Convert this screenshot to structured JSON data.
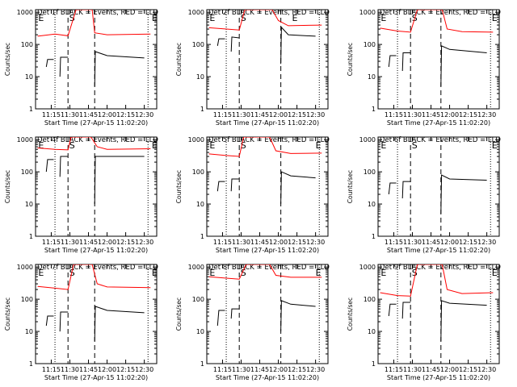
{
  "chart_data": {
    "type": "line",
    "common": {
      "title_suffix": "BLACK = Events, RED = LLD",
      "ylabel": "Counts/sec",
      "xlabel": "Start Time (27-Apr-15 11:02:20)",
      "x_ticks": [
        "11:15",
        "11:30",
        "11:45",
        "12:00",
        "12:15",
        "12:30"
      ],
      "x_tick_minutes": [
        15,
        30,
        45,
        60,
        75,
        90
      ],
      "xlim_minutes": [
        2.33,
        100
      ],
      "ylim": [
        1,
        1200
      ],
      "y_scale": "log",
      "y_ticks": [
        "1",
        "10",
        "100",
        "1000"
      ],
      "marker_labels": {
        "E": "E",
        "S": "S"
      },
      "colors": {
        "events": "#000000",
        "lld": "#ff0000"
      },
      "segment_minutes": [
        [
          11,
          17
        ],
        [
          22,
          28.5
        ],
        [
          50,
          90
        ]
      ]
    },
    "panels": [
      {
        "title": "Det 1f",
        "lld": [
          [
            4,
            180
          ],
          [
            18,
            210
          ],
          [
            28.5,
            185
          ],
          [
            35,
            1200
          ],
          [
            48,
            1200
          ],
          [
            50,
            230
          ],
          [
            60,
            200
          ],
          [
            95,
            210
          ]
        ],
        "events": [
          [
            11,
            20
          ],
          [
            12,
            34
          ],
          [
            17,
            34
          ],
          [
            22,
            10
          ],
          [
            22.5,
            40
          ],
          [
            28.5,
            40
          ],
          [
            50,
            5
          ],
          [
            50.5,
            60
          ],
          [
            60,
            45
          ],
          [
            90,
            38
          ]
        ],
        "dotted": [
          18,
          93
        ],
        "dashed": [
          28.5,
          50
        ],
        "E": [
          4.5,
          96
        ],
        "S": [
          29.5,
          96
        ]
      },
      {
        "title": "Det 2f",
        "lld": [
          [
            4,
            330
          ],
          [
            18,
            300
          ],
          [
            28.5,
            280
          ],
          [
            33,
            1200
          ],
          [
            55,
            1200
          ],
          [
            60,
            550
          ],
          [
            68,
            380
          ],
          [
            95,
            400
          ]
        ],
        "events": [
          [
            11,
            90
          ],
          [
            12,
            150
          ],
          [
            17,
            150
          ],
          [
            22,
            60
          ],
          [
            22.5,
            170
          ],
          [
            28.5,
            160
          ],
          [
            62,
            25
          ],
          [
            62.5,
            340
          ],
          [
            68,
            200
          ],
          [
            90,
            180
          ]
        ],
        "dotted": [
          18,
          93
        ],
        "dashed": [
          28.5,
          62
        ],
        "E": [
          4.5,
          71
        ],
        "S": [
          29.5,
          89
        ]
      },
      {
        "title": "Det 3f",
        "lld": [
          [
            4,
            320
          ],
          [
            18,
            260
          ],
          [
            28.5,
            240
          ],
          [
            34,
            1200
          ],
          [
            54,
            1200
          ],
          [
            58,
            300
          ],
          [
            70,
            250
          ],
          [
            95,
            240
          ]
        ],
        "events": [
          [
            11,
            20
          ],
          [
            12,
            45
          ],
          [
            17,
            45
          ],
          [
            22,
            15
          ],
          [
            22.5,
            55
          ],
          [
            28.5,
            55
          ],
          [
            53,
            5
          ],
          [
            53.5,
            90
          ],
          [
            60,
            70
          ],
          [
            90,
            55
          ]
        ],
        "dotted": [
          18,
          93
        ],
        "dashed": [
          28.5,
          53
        ],
        "E": [
          4.5,
          94
        ],
        "S": [
          29.5,
          93
        ]
      },
      {
        "title": "Det 4f",
        "lld": [
          [
            4,
            550
          ],
          [
            18,
            500
          ],
          [
            28.5,
            480
          ],
          [
            31,
            1200
          ],
          [
            47,
            1200
          ],
          [
            52,
            600
          ],
          [
            60,
            500
          ],
          [
            95,
            520
          ]
        ],
        "events": [
          [
            11,
            100
          ],
          [
            12,
            240
          ],
          [
            17,
            240
          ],
          [
            22,
            70
          ],
          [
            22.5,
            300
          ],
          [
            28.5,
            300
          ],
          [
            50,
            10
          ],
          [
            50.5,
            300
          ],
          [
            60,
            300
          ],
          [
            90,
            300
          ]
        ],
        "dotted": [
          18,
          93
        ],
        "dashed": [
          28.5,
          50
        ],
        "E": [
          4.5,
          96
        ],
        "S": [
          29.5,
          96
        ]
      },
      {
        "title": "Det 5f",
        "lld": [
          [
            4,
            360
          ],
          [
            18,
            320
          ],
          [
            28.5,
            300
          ],
          [
            32,
            1200
          ],
          [
            53,
            1200
          ],
          [
            58,
            450
          ],
          [
            70,
            370
          ],
          [
            95,
            380
          ]
        ],
        "events": [
          [
            11,
            25
          ],
          [
            12,
            50
          ],
          [
            17,
            50
          ],
          [
            22,
            25
          ],
          [
            22.5,
            60
          ],
          [
            28.5,
            60
          ],
          [
            62,
            10
          ],
          [
            62.5,
            100
          ],
          [
            70,
            75
          ],
          [
            90,
            65
          ]
        ],
        "dotted": [
          18,
          93
        ],
        "dashed": [
          28.5,
          62
        ],
        "E": [
          4.5,
          90
        ],
        "S": [
          29.5,
          89
        ]
      },
      {
        "title": "Det 6f",
        "lld": [],
        "events": [
          [
            11,
            20
          ],
          [
            12,
            45
          ],
          [
            17,
            45
          ],
          [
            22,
            15
          ],
          [
            22.5,
            50
          ],
          [
            28.5,
            50
          ],
          [
            53,
            5
          ],
          [
            53.5,
            80
          ],
          [
            60,
            60
          ],
          [
            90,
            55
          ]
        ],
        "dotted": [
          18,
          93
        ],
        "dashed": [
          28.5,
          53
        ],
        "E": [
          4.5,
          94
        ],
        "S": [
          29.5,
          93
        ]
      },
      {
        "title": "Det 7f",
        "lld": [
          [
            4,
            250
          ],
          [
            18,
            220
          ],
          [
            28.5,
            200
          ],
          [
            33,
            1200
          ],
          [
            48,
            1200
          ],
          [
            52,
            300
          ],
          [
            60,
            240
          ],
          [
            95,
            230
          ]
        ],
        "events": [
          [
            11,
            15
          ],
          [
            12,
            30
          ],
          [
            17,
            30
          ],
          [
            22,
            10
          ],
          [
            22.5,
            40
          ],
          [
            28.5,
            40
          ],
          [
            50,
            5
          ],
          [
            50.5,
            60
          ],
          [
            60,
            45
          ],
          [
            90,
            38
          ]
        ],
        "dotted": [
          18,
          93
        ],
        "dashed": [
          28.5,
          50
        ],
        "E": [
          4.5,
          96
        ],
        "S": [
          29.5,
          96
        ]
      },
      {
        "title": "Det 8f",
        "lld": [
          [
            4,
            500
          ],
          [
            18,
            450
          ],
          [
            28.5,
            420
          ],
          [
            34,
            1200
          ],
          [
            53,
            1200
          ],
          [
            58,
            550
          ],
          [
            70,
            480
          ],
          [
            95,
            480
          ]
        ],
        "events": [
          [
            11,
            15
          ],
          [
            12,
            45
          ],
          [
            17,
            45
          ],
          [
            22,
            25
          ],
          [
            22.5,
            50
          ],
          [
            28.5,
            50
          ],
          [
            62,
            10
          ],
          [
            62.5,
            90
          ],
          [
            70,
            70
          ],
          [
            90,
            60
          ]
        ],
        "dotted": [
          18,
          93
        ],
        "dashed": [
          28.5,
          62
        ],
        "E": [
          4.5,
          90
        ],
        "S": [
          29.5,
          89
        ]
      },
      {
        "title": "Det 9f",
        "lld": [
          [
            4,
            160
          ],
          [
            18,
            130
          ],
          [
            28.5,
            125
          ],
          [
            34,
            1200
          ],
          [
            54,
            1200
          ],
          [
            58,
            200
          ],
          [
            70,
            150
          ],
          [
            95,
            160
          ]
        ],
        "events": [
          [
            11,
            30
          ],
          [
            12,
            70
          ],
          [
            17,
            70
          ],
          [
            22,
            25
          ],
          [
            22.5,
            80
          ],
          [
            28.5,
            80
          ],
          [
            53,
            5
          ],
          [
            53.5,
            90
          ],
          [
            60,
            75
          ],
          [
            90,
            65
          ]
        ],
        "dotted": [
          18,
          93
        ],
        "dashed": [
          28.5,
          53
        ],
        "E": [
          4.5,
          94
        ],
        "S": [
          29.5,
          93
        ]
      }
    ]
  }
}
